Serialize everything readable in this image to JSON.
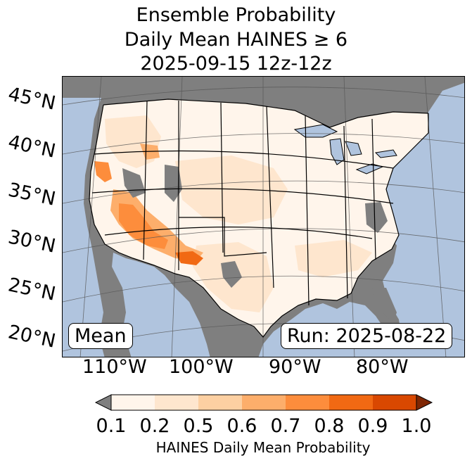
{
  "title": {
    "line1": "Ensemble Probability",
    "line2": "Daily Mean HAINES ≥ 6",
    "line3": "2025-09-15 12z-12z"
  },
  "map": {
    "region": "Contiguous United States",
    "lat_labels": [
      "45°N",
      "40°N",
      "35°N",
      "30°N",
      "25°N",
      "20°N"
    ],
    "lon_labels": [
      "110°W",
      "100°W",
      "90°W",
      "80°W"
    ],
    "stat_label": "Mean",
    "run_label": "Run: 2025-08-22",
    "colors": {
      "ocean": "#b0c4de",
      "land": "#7f7f7f",
      "lakes": "#b0c4de",
      "borders": "#000000",
      "graticule": "#555555"
    }
  },
  "colorbar": {
    "label": "HAINES Daily Mean Probability",
    "ticks": [
      "0.1",
      "0.2",
      "0.5",
      "0.6",
      "0.7",
      "0.8",
      "0.9",
      "1.0"
    ],
    "under_color": "#7f7f7f",
    "over_color": "#7f2704",
    "bins": [
      "#fff5eb",
      "#fee6ce",
      "#fdd0a2",
      "#fdae6b",
      "#fd8d3c",
      "#f16913",
      "#d94801"
    ]
  }
}
